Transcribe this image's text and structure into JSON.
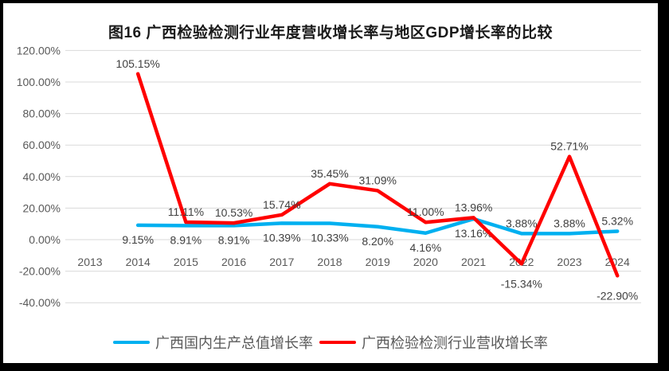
{
  "chart_data": {
    "type": "line",
    "title": "图16 广西检验检测行业年度营收增长率与地区GDP增长率的比较",
    "categories": [
      "2013",
      "2014",
      "2015",
      "2016",
      "2017",
      "2018",
      "2019",
      "2020",
      "2021",
      "2022",
      "2023",
      "2024"
    ],
    "y_axis": {
      "min": -40,
      "max": 120,
      "step": 20,
      "tick_values": [
        120,
        100,
        80,
        60,
        40,
        20,
        0,
        -20,
        -40
      ],
      "tick_labels": [
        "120.00%",
        "100.00%",
        "80.00%",
        "60.00%",
        "40.00%",
        "20.00%",
        "0.00%",
        "-20.00%",
        "-40.00%"
      ]
    },
    "grid": "horizontal",
    "legend_position": "bottom",
    "series": [
      {
        "name": "广西国内生产总值增长率",
        "color": "#00B0F0",
        "values": [
          null,
          9.15,
          8.91,
          8.91,
          10.39,
          10.33,
          8.2,
          4.16,
          13.16,
          3.88,
          3.88,
          5.32
        ],
        "labels": [
          null,
          "9.15%",
          "8.91%",
          "8.91%",
          "10.39%",
          "10.33%",
          "8.20%",
          "4.16%",
          "13.16%",
          "3.88%",
          "3.88%",
          "5.32%"
        ],
        "label_placement": [
          null,
          "below",
          "below",
          "below",
          "below",
          "below",
          "below",
          "below",
          "below",
          "above",
          "above",
          "above"
        ]
      },
      {
        "name": "广西检验检测行业营收增长率",
        "color": "#FF0000",
        "values": [
          null,
          105.15,
          11.11,
          10.53,
          15.74,
          35.45,
          31.09,
          11.0,
          13.96,
          -15.34,
          52.71,
          -22.9
        ],
        "labels": [
          null,
          "105.15%",
          "11.11%",
          "10.53%",
          "15.74%",
          "35.45%",
          "31.09%",
          "11.00%",
          "13.96%",
          "-15.34%",
          "52.71%",
          "-22.90%"
        ],
        "label_placement": [
          null,
          "above",
          "above",
          "above",
          "above",
          "above",
          "above",
          "above",
          "above",
          "below",
          "above",
          "below"
        ]
      }
    ],
    "colors": {
      "gridline": "#D9D9D9",
      "axis_text": "#595959",
      "data_label": "#404040",
      "frame": "#000000",
      "background": "#FFFFFF"
    }
  }
}
